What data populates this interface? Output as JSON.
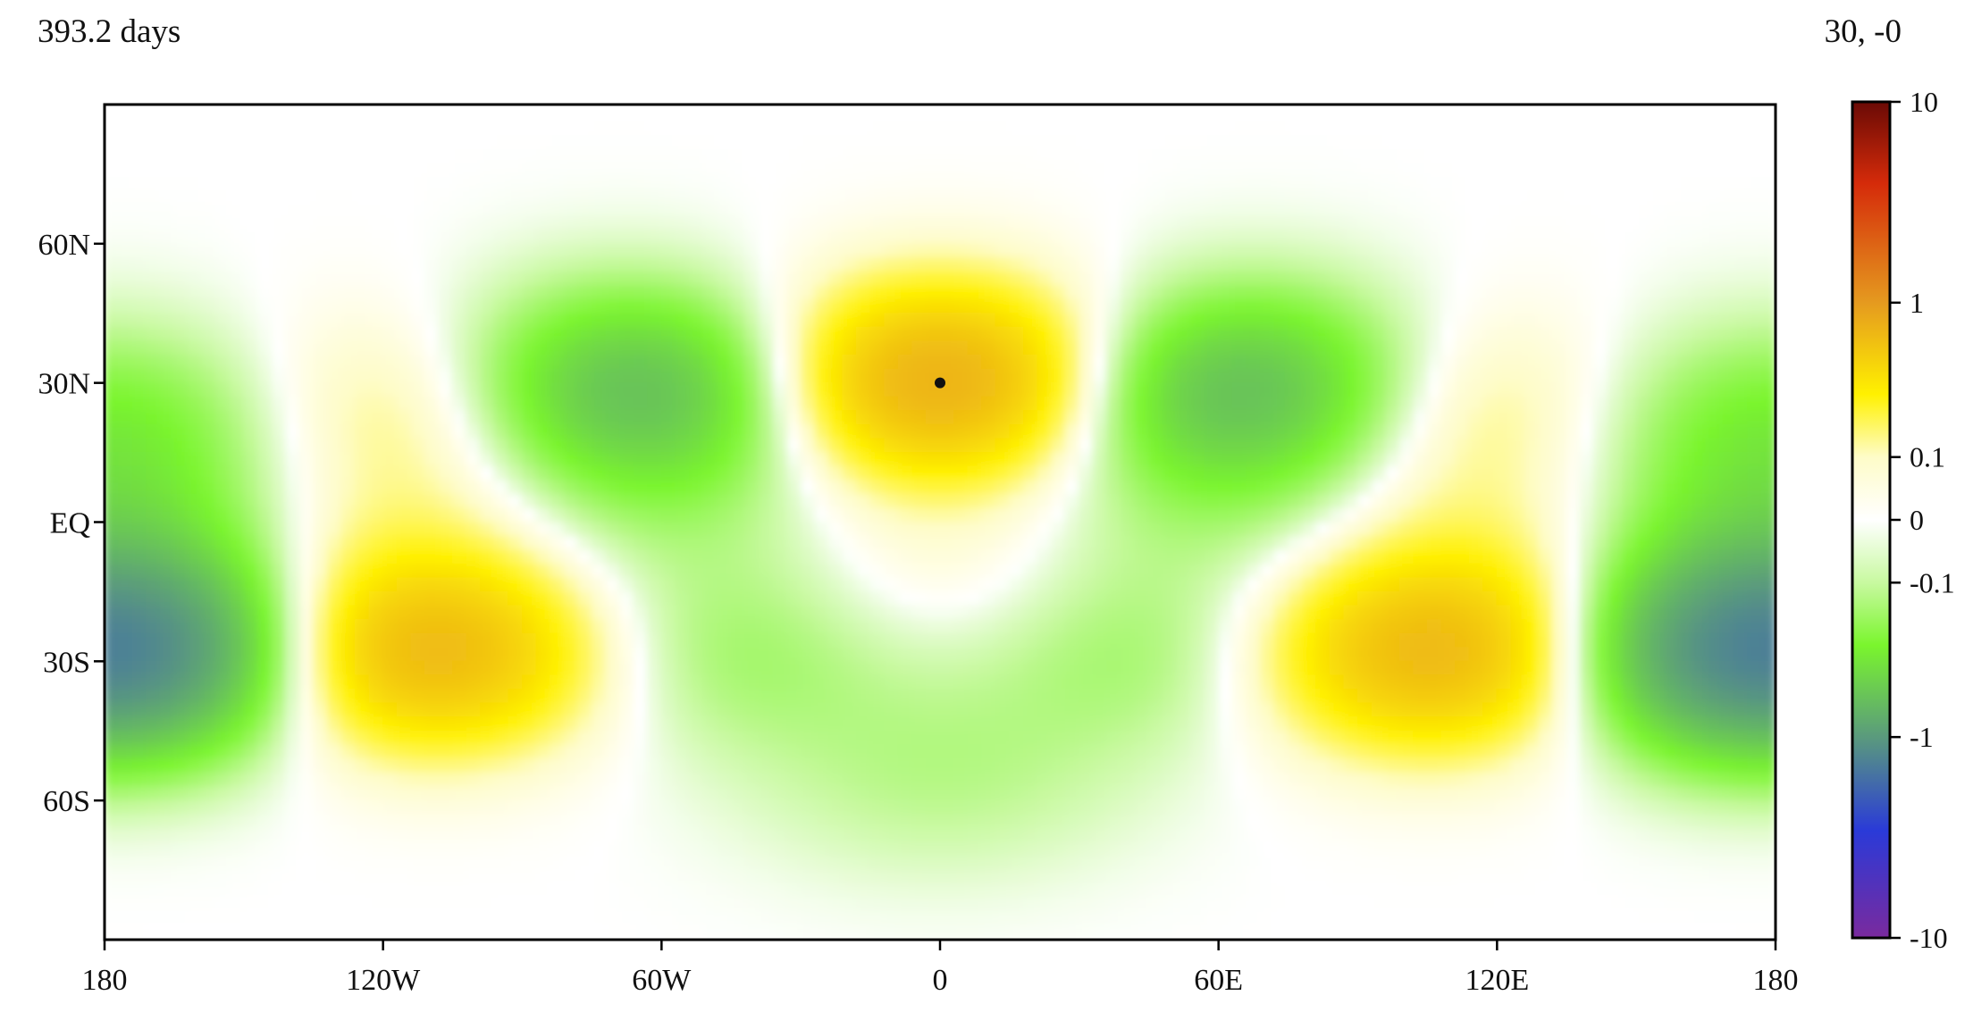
{
  "header": {
    "time_label": "393.2 days",
    "position_label": "30, -0"
  },
  "chart_data": {
    "type": "heatmap",
    "title": "",
    "xlabel": "",
    "ylabel": "",
    "projection": "equirectangular",
    "xlim": [
      -180,
      180
    ],
    "ylim": [
      -90,
      90
    ],
    "x_ticks": [
      {
        "value": -180,
        "label": "180"
      },
      {
        "value": -120,
        "label": "120W"
      },
      {
        "value": -60,
        "label": "60W"
      },
      {
        "value": 0,
        "label": "0"
      },
      {
        "value": 60,
        "label": "60E"
      },
      {
        "value": 120,
        "label": "120E"
      },
      {
        "value": 180,
        "label": "180"
      }
    ],
    "y_ticks": [
      {
        "value": 60,
        "label": "60N"
      },
      {
        "value": 30,
        "label": "30N"
      },
      {
        "value": 0,
        "label": "EQ"
      },
      {
        "value": -30,
        "label": "30S"
      },
      {
        "value": -60,
        "label": "60S"
      }
    ],
    "marker": {
      "lon": 0,
      "lat": 30
    },
    "field_extrema": [
      {
        "lon": 0,
        "lat": 30,
        "value": 0.8
      },
      {
        "lon": -65,
        "lat": 28,
        "value": -0.7
      },
      {
        "lon": 65,
        "lat": 28,
        "value": -0.7
      },
      {
        "lon": -110,
        "lat": 25,
        "value": 0.25
      },
      {
        "lon": 110,
        "lat": 25,
        "value": 0.25
      },
      {
        "lon": -170,
        "lat": 22,
        "value": -0.15
      },
      {
        "lon": 170,
        "lat": 22,
        "value": -0.15
      },
      {
        "lon": -175,
        "lat": -28,
        "value": -0.7
      },
      {
        "lon": 175,
        "lat": -28,
        "value": -0.7
      },
      {
        "lon": -112,
        "lat": -28,
        "value": 0.7
      },
      {
        "lon": 108,
        "lat": -28,
        "value": 0.7
      },
      {
        "lon": -45,
        "lat": -28,
        "value": -0.2
      },
      {
        "lon": 45,
        "lat": -28,
        "value": -0.2
      },
      {
        "lon": 0,
        "lat": -55,
        "value": -0.12
      },
      {
        "lon": 0,
        "lat": -15,
        "value": 0.1
      },
      {
        "lon": -60,
        "lat": 0,
        "value": -0.1
      },
      {
        "lon": 60,
        "lat": 0,
        "value": -0.1
      },
      {
        "lon": -120,
        "lat": 0,
        "value": 0.1
      },
      {
        "lon": 120,
        "lat": 0,
        "value": 0.1
      },
      {
        "lon": -175,
        "lat": 0,
        "value": -0.12
      },
      {
        "lon": 175,
        "lat": 0,
        "value": -0.12
      }
    ],
    "colorbar": {
      "scale": "symmetric-log",
      "range": [
        -10,
        10
      ],
      "ticks": [
        {
          "value": 10,
          "label": "10"
        },
        {
          "value": 1,
          "label": "1"
        },
        {
          "value": 0.1,
          "label": "0.1"
        },
        {
          "value": 0,
          "label": "0"
        },
        {
          "value": -0.1,
          "label": "-0.1"
        },
        {
          "value": -1,
          "label": "-1"
        },
        {
          "value": -10,
          "label": "-10"
        }
      ],
      "colors": [
        {
          "value": 10,
          "color": "#6a0a05"
        },
        {
          "value": 4,
          "color": "#d52b0a"
        },
        {
          "value": 1,
          "color": "#e59a1f"
        },
        {
          "value": 0.3,
          "color": "#fff100"
        },
        {
          "value": 0.1,
          "color": "#fefcc8"
        },
        {
          "value": 0,
          "color": "#ffffff"
        },
        {
          "value": -0.1,
          "color": "#c8f9a0"
        },
        {
          "value": -0.3,
          "color": "#7af52d"
        },
        {
          "value": -1,
          "color": "#5a9a7d"
        },
        {
          "value": -3,
          "color": "#2a3ad8"
        },
        {
          "value": -10,
          "color": "#7a2a9e"
        }
      ]
    }
  }
}
